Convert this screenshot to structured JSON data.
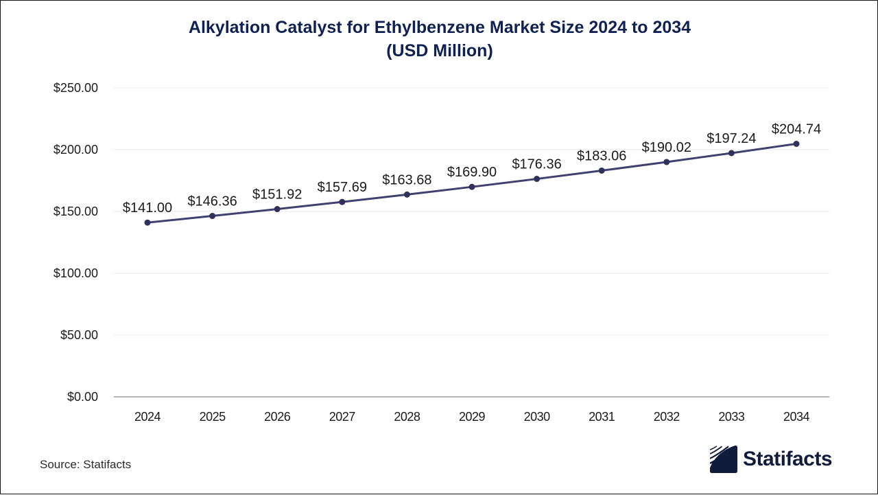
{
  "page": {
    "title_line1": "Alkylation Catalyst for Ethylbenzene Market Size 2024 to 2034",
    "title_line2": "(USD Million)",
    "source_text": "Source: Statifacts",
    "brand_name": "Statifacts"
  },
  "colors": {
    "title": "#0e2150",
    "line": "#41416f",
    "marker": "#30305a",
    "gridline": "#e9e9e9",
    "axis_line": "#b5b5b5",
    "tick_text": "#1a1a1a",
    "point_label_text": "#1a1a1a",
    "brand_navy": "#111c3d"
  },
  "chart_data": {
    "type": "line",
    "title": "Alkylation Catalyst for Ethylbenzene Market Size 2024 to 2034 (USD Million)",
    "x": [
      2024,
      2025,
      2026,
      2027,
      2028,
      2029,
      2030,
      2031,
      2032,
      2033,
      2034
    ],
    "x_labels": [
      "2024",
      "2025",
      "2026",
      "2027",
      "2028",
      "2029",
      "2030",
      "2031",
      "2032",
      "2033",
      "2034"
    ],
    "series": [
      {
        "name": "Market Size (USD Million)",
        "values": [
          141.0,
          146.36,
          151.92,
          157.69,
          163.68,
          169.9,
          176.36,
          183.06,
          190.02,
          197.24,
          204.74
        ]
      }
    ],
    "point_labels": [
      "$141.00",
      "$146.36",
      "$151.92",
      "$157.69",
      "$163.68",
      "$169.90",
      "$176.36",
      "$183.06",
      "$190.02",
      "$197.24",
      "$204.74"
    ],
    "xlabel": "",
    "ylabel": "",
    "ylim": [
      0,
      250
    ],
    "y_tick_values": [
      0,
      50,
      100,
      150,
      200,
      250
    ],
    "y_tick_labels": [
      "$0.00",
      "$50.00",
      "$100.00",
      "$150.00",
      "$200.00",
      "$250.00"
    ],
    "grid": true,
    "legend": false,
    "marker": "circle",
    "data_labels": true
  }
}
